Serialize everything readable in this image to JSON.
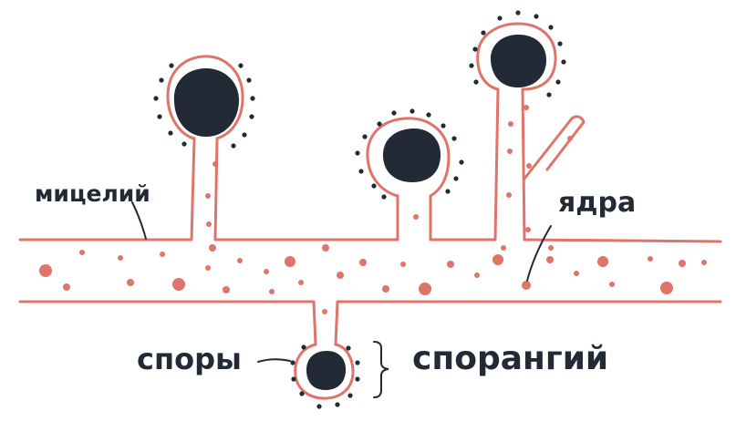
{
  "labels": {
    "mycelium": "мицелий",
    "nuclei": "ядра",
    "spores": "споры",
    "sporangium": "спорангий"
  },
  "colors": {
    "outline": "#e0736a",
    "nucleus_dot": "#e0736a",
    "sporangium_fill": "#222a36",
    "spore_dot": "#222a36",
    "label_text": "#222a36",
    "background": "#ffffff"
  }
}
